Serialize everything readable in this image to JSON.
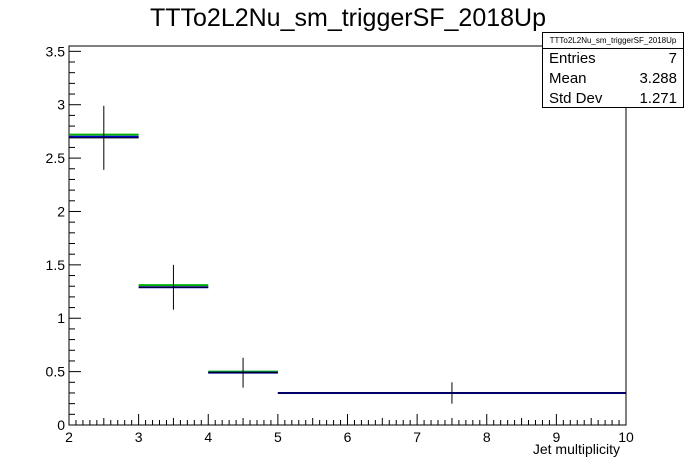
{
  "chart_data": {
    "type": "histogram",
    "title": "TTTo2L2Nu_sm_triggerSF_2018Up",
    "xlabel": "Jet multiplicity",
    "ylabel": "",
    "xlim": [
      2,
      10
    ],
    "ylim": [
      0,
      3.55
    ],
    "x_ticks": [
      "2",
      "3",
      "4",
      "5",
      "6",
      "7",
      "8",
      "9",
      "10"
    ],
    "y_ticks": [
      "0",
      "0.5",
      "1",
      "1.5",
      "2",
      "2.5",
      "3",
      "3.5"
    ],
    "bins": [
      {
        "x_low": 2,
        "x_high": 3,
        "value": 2.69,
        "err": 0.3
      },
      {
        "x_low": 3,
        "x_high": 4,
        "value": 1.29,
        "err": 0.21
      },
      {
        "x_low": 4,
        "x_high": 5,
        "value": 0.49,
        "err": 0.14
      },
      {
        "x_low": 5,
        "x_high": 10,
        "value": 0.3,
        "err": 0.1
      }
    ],
    "overlay_series": [
      {
        "color": "#00b000",
        "values": [
          2.72,
          1.31,
          0.5,
          0.3
        ]
      },
      {
        "color": "#0000cc",
        "values": [
          2.7,
          1.29,
          0.49,
          0.3
        ]
      }
    ],
    "stats_box": {
      "name": "TTTo2L2Nu_sm_triggerSF_2018Up",
      "rows": [
        {
          "label": "Entries",
          "value": "7"
        },
        {
          "label": "Mean",
          "value": "3.288"
        },
        {
          "label": "Std Dev",
          "value": "1.271"
        }
      ]
    }
  }
}
